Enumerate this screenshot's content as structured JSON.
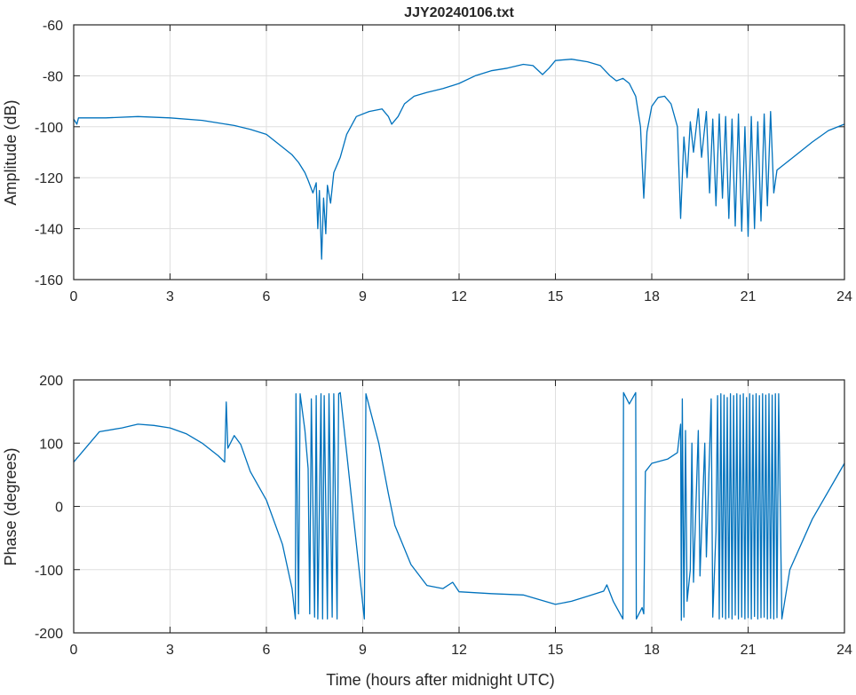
{
  "chart_data": [
    {
      "type": "line",
      "title": "JJY20240106.txt",
      "xlabel": "",
      "ylabel": "Amplitude (dB)",
      "xlim": [
        0,
        24
      ],
      "ylim": [
        -160,
        -60
      ],
      "xticks": [
        0,
        3,
        6,
        9,
        12,
        15,
        18,
        21,
        24
      ],
      "yticks": [
        -160,
        -140,
        -120,
        -100,
        -80,
        -60
      ],
      "grid": true,
      "color": "#0072BD",
      "series": [
        {
          "name": "amplitude",
          "points": [
            [
              0,
              -97
            ],
            [
              0.1,
              -99
            ],
            [
              0.15,
              -96.5
            ],
            [
              1,
              -96.5
            ],
            [
              2,
              -96
            ],
            [
              3,
              -96.5
            ],
            [
              4,
              -97.5
            ],
            [
              4.5,
              -98.5
            ],
            [
              5,
              -99.5
            ],
            [
              5.5,
              -101
            ],
            [
              6,
              -103
            ],
            [
              6.5,
              -108
            ],
            [
              6.8,
              -111
            ],
            [
              7,
              -114
            ],
            [
              7.2,
              -118
            ],
            [
              7.3,
              -121
            ],
            [
              7.45,
              -126
            ],
            [
              7.55,
              -122
            ],
            [
              7.6,
              -140
            ],
            [
              7.65,
              -125
            ],
            [
              7.72,
              -152
            ],
            [
              7.78,
              -128
            ],
            [
              7.85,
              -142
            ],
            [
              7.9,
              -123
            ],
            [
              8.0,
              -130
            ],
            [
              8.1,
              -118
            ],
            [
              8.3,
              -112
            ],
            [
              8.5,
              -103
            ],
            [
              8.8,
              -96
            ],
            [
              9.2,
              -94
            ],
            [
              9.6,
              -93
            ],
            [
              9.8,
              -96
            ],
            [
              9.9,
              -99
            ],
            [
              10.1,
              -96
            ],
            [
              10.3,
              -91
            ],
            [
              10.6,
              -88
            ],
            [
              11,
              -86.5
            ],
            [
              11.5,
              -85
            ],
            [
              12,
              -83
            ],
            [
              12.5,
              -80
            ],
            [
              13,
              -78
            ],
            [
              13.5,
              -77
            ],
            [
              14,
              -75.5
            ],
            [
              14.3,
              -76
            ],
            [
              14.6,
              -79.5
            ],
            [
              14.8,
              -77
            ],
            [
              15,
              -74
            ],
            [
              15.5,
              -73.5
            ],
            [
              16,
              -74.5
            ],
            [
              16.4,
              -76
            ],
            [
              16.7,
              -80
            ],
            [
              16.9,
              -82
            ],
            [
              17.1,
              -81
            ],
            [
              17.3,
              -83
            ],
            [
              17.5,
              -88
            ],
            [
              17.65,
              -100
            ],
            [
              17.75,
              -128
            ],
            [
              17.85,
              -102
            ],
            [
              18,
              -92
            ],
            [
              18.2,
              -88.5
            ],
            [
              18.4,
              -88
            ],
            [
              18.6,
              -91
            ],
            [
              18.8,
              -100
            ],
            [
              18.9,
              -136
            ],
            [
              19.0,
              -104
            ],
            [
              19.1,
              -120
            ],
            [
              19.2,
              -98
            ],
            [
              19.3,
              -110
            ],
            [
              19.45,
              -93
            ],
            [
              19.55,
              -112
            ],
            [
              19.7,
              -94
            ],
            [
              19.8,
              -126
            ],
            [
              19.9,
              -97
            ],
            [
              20.0,
              -131
            ],
            [
              20.1,
              -95
            ],
            [
              20.2,
              -128
            ],
            [
              20.3,
              -96
            ],
            [
              20.4,
              -136
            ],
            [
              20.5,
              -97
            ],
            [
              20.6,
              -139
            ],
            [
              20.7,
              -95
            ],
            [
              20.8,
              -141
            ],
            [
              20.9,
              -100
            ],
            [
              21.0,
              -143
            ],
            [
              21.1,
              -96
            ],
            [
              21.2,
              -140
            ],
            [
              21.3,
              -98
            ],
            [
              21.4,
              -137
            ],
            [
              21.5,
              -95
            ],
            [
              21.6,
              -131
            ],
            [
              21.7,
              -94
            ],
            [
              21.8,
              -126
            ],
            [
              21.9,
              -117
            ],
            [
              22.2,
              -114
            ],
            [
              22.5,
              -111
            ],
            [
              23,
              -106
            ],
            [
              23.5,
              -101.5
            ],
            [
              24,
              -99
            ]
          ]
        }
      ]
    },
    {
      "type": "line",
      "title": "",
      "xlabel": "Time (hours after midnight UTC)",
      "ylabel": "Phase (degrees)",
      "xlim": [
        0,
        24
      ],
      "ylim": [
        -200,
        200
      ],
      "xticks": [
        0,
        3,
        6,
        9,
        12,
        15,
        18,
        21,
        24
      ],
      "yticks": [
        -200,
        -100,
        0,
        100,
        200
      ],
      "grid": true,
      "color": "#0072BD",
      "series": [
        {
          "name": "phase",
          "points": [
            [
              0,
              70
            ],
            [
              0.3,
              88
            ],
            [
              0.8,
              118
            ],
            [
              1.5,
              124
            ],
            [
              2,
              130
            ],
            [
              2.5,
              128
            ],
            [
              3,
              124
            ],
            [
              3.5,
              115
            ],
            [
              4,
              100
            ],
            [
              4.5,
              80
            ],
            [
              4.7,
              70
            ],
            [
              4.75,
              165
            ],
            [
              4.8,
              92
            ],
            [
              5.0,
              112
            ],
            [
              5.2,
              98
            ],
            [
              5.5,
              55
            ],
            [
              6,
              10
            ],
            [
              6.5,
              -60
            ],
            [
              6.8,
              -130
            ],
            [
              6.9,
              -178
            ],
            [
              6.92,
              178
            ],
            [
              7.0,
              -170
            ],
            [
              7.05,
              178
            ],
            [
              7.2,
              120
            ],
            [
              7.3,
              60
            ],
            [
              7.35,
              -170
            ],
            [
              7.4,
              170
            ],
            [
              7.5,
              -175
            ],
            [
              7.55,
              175
            ],
            [
              7.6,
              -178
            ],
            [
              7.7,
              178
            ],
            [
              7.75,
              -178
            ],
            [
              7.8,
              175
            ],
            [
              7.9,
              -178
            ],
            [
              7.95,
              178
            ],
            [
              8.05,
              -175
            ],
            [
              8.1,
              178
            ],
            [
              8.2,
              -178
            ],
            [
              8.25,
              178
            ],
            [
              8.3,
              180
            ],
            [
              9.05,
              -178
            ],
            [
              9.1,
              178
            ],
            [
              9.5,
              100
            ],
            [
              9.8,
              20
            ],
            [
              10,
              -30
            ],
            [
              10.5,
              -92
            ],
            [
              11,
              -125
            ],
            [
              11.5,
              -130
            ],
            [
              11.8,
              -120
            ],
            [
              12,
              -135
            ],
            [
              13,
              -138
            ],
            [
              14,
              -140
            ],
            [
              15,
              -155
            ],
            [
              15.5,
              -150
            ],
            [
              16,
              -142
            ],
            [
              16.5,
              -134
            ],
            [
              16.6,
              -124
            ],
            [
              16.8,
              -150
            ],
            [
              17.1,
              -178
            ],
            [
              17.12,
              180
            ],
            [
              17.3,
              162
            ],
            [
              17.5,
              180
            ],
            [
              17.52,
              -178
            ],
            [
              17.7,
              -160
            ],
            [
              17.75,
              -170
            ],
            [
              17.8,
              55
            ],
            [
              18,
              68
            ],
            [
              18.5,
              75
            ],
            [
              18.8,
              85
            ],
            [
              18.9,
              130
            ],
            [
              18.92,
              -180
            ],
            [
              18.95,
              170
            ],
            [
              19.0,
              -175
            ],
            [
              19.05,
              120
            ],
            [
              19.1,
              -150
            ],
            [
              19.2,
              -100
            ],
            [
              19.25,
              100
            ],
            [
              19.3,
              -120
            ],
            [
              19.45,
              120
            ],
            [
              19.5,
              -110
            ],
            [
              19.65,
              100
            ],
            [
              19.7,
              -80
            ],
            [
              19.85,
              170
            ],
            [
              19.9,
              -175
            ],
            [
              20.0,
              -40
            ],
            [
              20.05,
              175
            ],
            [
              20.1,
              -178
            ],
            [
              20.15,
              178
            ],
            [
              20.2,
              -175
            ],
            [
              20.25,
              176
            ],
            [
              20.3,
              -178
            ],
            [
              20.35,
              172
            ],
            [
              20.4,
              -176
            ],
            [
              20.45,
              178
            ],
            [
              20.5,
              -178
            ],
            [
              20.55,
              175
            ],
            [
              20.6,
              -172
            ],
            [
              20.65,
              178
            ],
            [
              20.7,
              -178
            ],
            [
              20.75,
              176
            ],
            [
              20.8,
              -175
            ],
            [
              20.85,
              178
            ],
            [
              20.9,
              -178
            ],
            [
              20.95,
              172
            ],
            [
              21.0,
              -176
            ],
            [
              21.05,
              178
            ],
            [
              21.1,
              -178
            ],
            [
              21.15,
              176
            ],
            [
              21.2,
              -174
            ],
            [
              21.25,
              178
            ],
            [
              21.3,
              -178
            ],
            [
              21.35,
              175
            ],
            [
              21.4,
              -176
            ],
            [
              21.45,
              178
            ],
            [
              21.5,
              -175
            ],
            [
              21.55,
              176
            ],
            [
              21.6,
              -178
            ],
            [
              21.65,
              178
            ],
            [
              21.7,
              -177
            ],
            [
              21.75,
              176
            ],
            [
              21.8,
              -178
            ],
            [
              21.85,
              178
            ],
            [
              21.9,
              -176
            ],
            [
              21.95,
              178
            ],
            [
              22.05,
              -178
            ],
            [
              22.3,
              -100
            ],
            [
              23,
              -20
            ],
            [
              24,
              68
            ]
          ]
        }
      ]
    }
  ]
}
